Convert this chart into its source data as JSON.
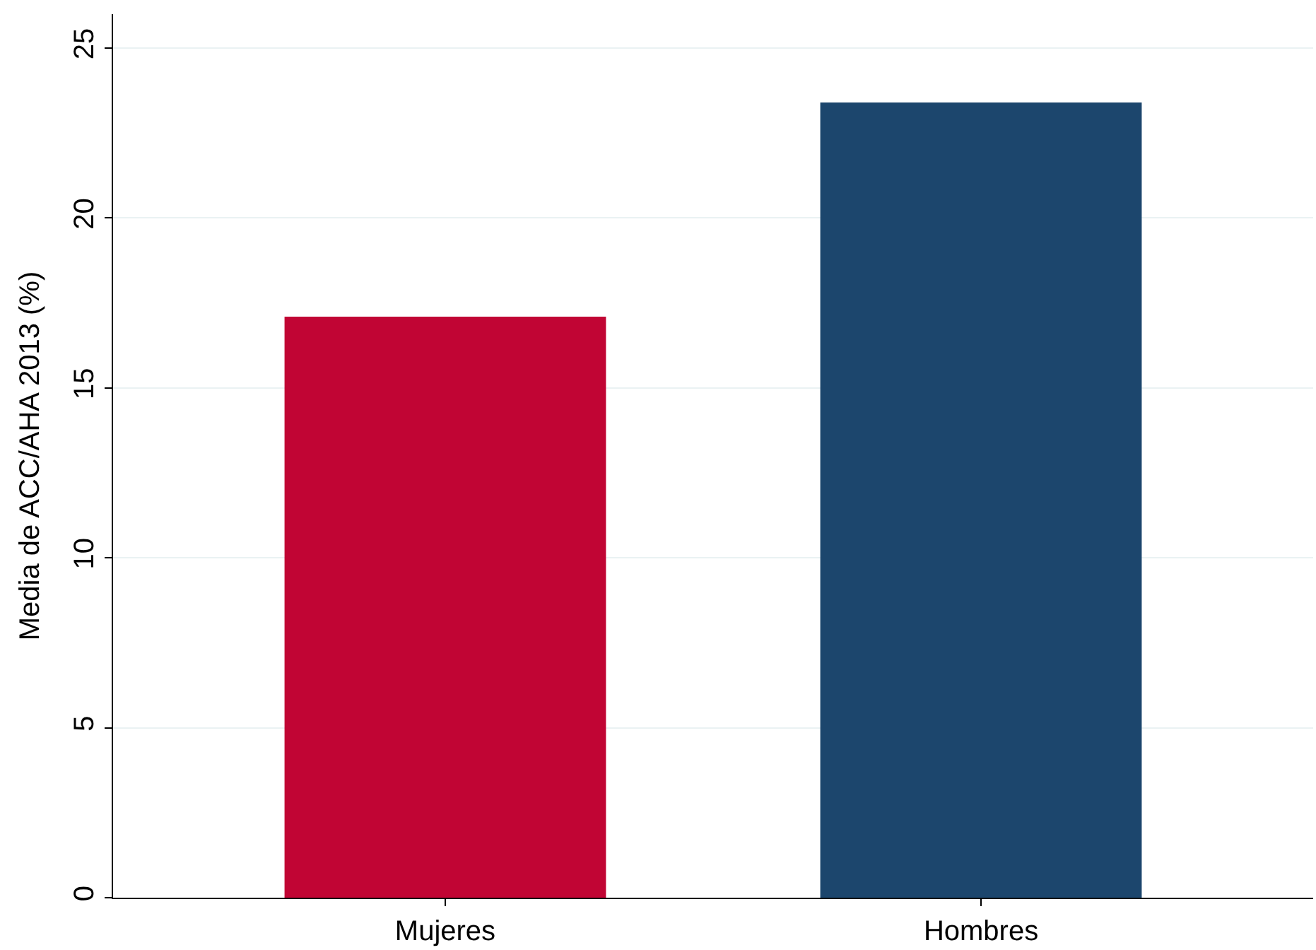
{
  "chart_data": {
    "type": "bar",
    "ylabel": "Media de ACC/AHA 2013 (%)",
    "categories": [
      "Mujeres",
      "Hombres"
    ],
    "values": [
      17.1,
      23.4
    ],
    "colors": [
      "#c10534",
      "#1c466d"
    ],
    "ylim": [
      0,
      26
    ],
    "yticks": [
      0,
      5,
      10,
      15,
      20,
      25
    ],
    "grid": "y"
  }
}
